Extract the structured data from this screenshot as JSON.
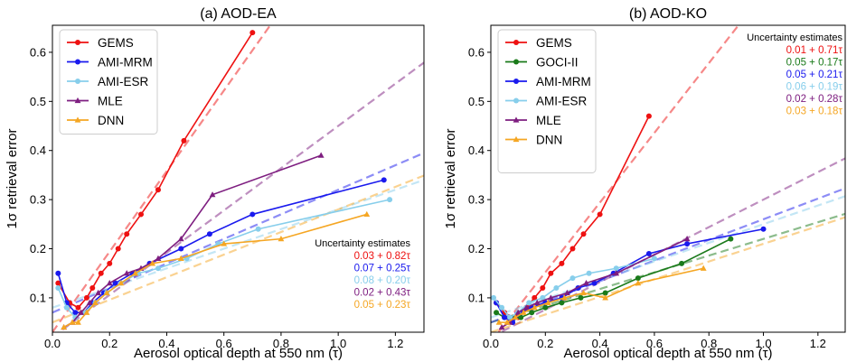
{
  "chart_data": [
    {
      "type": "line",
      "title": "(a) AOD-EA",
      "xlabel": "Aerosol optical depth at 550 nm (τ)",
      "ylabel": "1σ retrieval error",
      "xlim": [
        0,
        1.3
      ],
      "ylim": [
        0.03,
        0.655
      ],
      "xticks": [
        "0.0",
        "0.2",
        "0.4",
        "0.6",
        "0.8",
        "1.0",
        "1.2"
      ],
      "yticks": [
        "0.1",
        "0.2",
        "0.3",
        "0.4",
        "0.5",
        "0.6"
      ],
      "legend_position": "top-left",
      "uncertainty_title": "Uncertainty estimates",
      "series": [
        {
          "name": "GEMS",
          "color": "#ee1111",
          "marker": "circle",
          "x": [
            0.02,
            0.06,
            0.09,
            0.12,
            0.14,
            0.17,
            0.2,
            0.23,
            0.26,
            0.31,
            0.37,
            0.46,
            0.7
          ],
          "y": [
            0.13,
            0.09,
            0.08,
            0.1,
            0.12,
            0.15,
            0.17,
            0.2,
            0.23,
            0.27,
            0.32,
            0.42,
            0.64
          ],
          "fit": [
            0.03,
            0.82
          ],
          "fit_label": "0.03 + 0.82τ"
        },
        {
          "name": "AMI-MRM",
          "color": "#1a1aee",
          "marker": "circle",
          "x": [
            0.02,
            0.05,
            0.08,
            0.11,
            0.14,
            0.18,
            0.22,
            0.28,
            0.34,
            0.45,
            0.55,
            0.7,
            1.16
          ],
          "y": [
            0.15,
            0.09,
            0.07,
            0.07,
            0.09,
            0.11,
            0.13,
            0.15,
            0.17,
            0.2,
            0.23,
            0.27,
            0.34
          ],
          "fit": [
            0.07,
            0.25
          ],
          "fit_label": "0.07 + 0.25τ"
        },
        {
          "name": "AMI-ESR",
          "color": "#87ceeb",
          "marker": "circle",
          "x": [
            0.02,
            0.05,
            0.08,
            0.11,
            0.15,
            0.19,
            0.24,
            0.3,
            0.37,
            0.47,
            0.58,
            0.72,
            1.18
          ],
          "y": [
            0.12,
            0.08,
            0.06,
            0.07,
            0.09,
            0.11,
            0.13,
            0.15,
            0.16,
            0.18,
            0.21,
            0.24,
            0.3
          ],
          "fit": [
            0.08,
            0.2
          ],
          "fit_label": "0.08 + 0.20τ"
        },
        {
          "name": "MLE",
          "color": "#7e1e80",
          "marker": "triangle",
          "x": [
            0.04,
            0.07,
            0.1,
            0.13,
            0.16,
            0.2,
            0.26,
            0.31,
            0.37,
            0.45,
            0.56,
            0.94
          ],
          "y": [
            0.04,
            0.05,
            0.07,
            0.09,
            0.11,
            0.13,
            0.15,
            0.16,
            0.18,
            0.22,
            0.31,
            0.39
          ],
          "fit": [
            0.02,
            0.43
          ],
          "fit_label": "0.02 + 0.43τ"
        },
        {
          "name": "DNN",
          "color": "#f5a623",
          "marker": "triangle",
          "x": [
            0.04,
            0.07,
            0.09,
            0.12,
            0.15,
            0.19,
            0.24,
            0.29,
            0.35,
            0.45,
            0.6,
            0.8,
            1.1
          ],
          "y": [
            0.04,
            0.05,
            0.05,
            0.07,
            0.09,
            0.11,
            0.13,
            0.15,
            0.17,
            0.18,
            0.21,
            0.22,
            0.27
          ],
          "fit": [
            0.05,
            0.23
          ],
          "fit_label": "0.05 + 0.23τ"
        }
      ]
    },
    {
      "type": "line",
      "title": "(b) AOD-KO",
      "xlabel": "Aerosol optical depth at 550 nm (τ)",
      "ylabel": "1σ retrieval error",
      "xlim": [
        0,
        1.3
      ],
      "ylim": [
        0.03,
        0.655
      ],
      "xticks": [
        "0.0",
        "0.2",
        "0.4",
        "0.6",
        "0.8",
        "1.0",
        "1.2"
      ],
      "yticks": [
        "0.1",
        "0.2",
        "0.3",
        "0.4",
        "0.5",
        "0.6"
      ],
      "legend_position": "top-left",
      "uncertainty_title": "Uncertainty estimates",
      "series": [
        {
          "name": "GEMS",
          "color": "#ee1111",
          "marker": "circle",
          "x": [
            0.02,
            0.05,
            0.08,
            0.1,
            0.13,
            0.16,
            0.19,
            0.22,
            0.26,
            0.3,
            0.34,
            0.4,
            0.58
          ],
          "y": [
            0.09,
            0.07,
            0.06,
            0.06,
            0.08,
            0.1,
            0.12,
            0.15,
            0.17,
            0.2,
            0.23,
            0.27,
            0.47
          ],
          "fit": [
            0.01,
            0.71
          ],
          "fit_label": "0.01 + 0.71τ"
        },
        {
          "name": "GOCI-II",
          "color": "#1a7a1a",
          "marker": "circle",
          "x": [
            0.02,
            0.05,
            0.08,
            0.11,
            0.15,
            0.2,
            0.26,
            0.33,
            0.42,
            0.54,
            0.7,
            0.88
          ],
          "y": [
            0.07,
            0.06,
            0.06,
            0.06,
            0.07,
            0.08,
            0.09,
            0.1,
            0.11,
            0.14,
            0.17,
            0.22
          ],
          "fit": [
            0.05,
            0.17
          ],
          "fit_label": "0.05 + 0.17τ"
        },
        {
          "name": "AMI-MRM",
          "color": "#1a1aee",
          "marker": "circle",
          "x": [
            0.02,
            0.05,
            0.08,
            0.11,
            0.15,
            0.2,
            0.26,
            0.32,
            0.38,
            0.45,
            0.58,
            0.72,
            1.0
          ],
          "y": [
            0.09,
            0.06,
            0.05,
            0.07,
            0.08,
            0.09,
            0.1,
            0.12,
            0.13,
            0.15,
            0.19,
            0.21,
            0.24
          ],
          "fit": [
            0.05,
            0.21
          ],
          "fit_label": "0.05 + 0.21τ"
        },
        {
          "name": "AMI-ESR",
          "color": "#87ceeb",
          "marker": "circle",
          "x": [
            0.01,
            0.04,
            0.07,
            0.1,
            0.14,
            0.19,
            0.24,
            0.3,
            0.36,
            0.46,
            0.6
          ],
          "y": [
            0.1,
            0.08,
            0.06,
            0.07,
            0.09,
            0.1,
            0.12,
            0.14,
            0.15,
            0.16,
            0.18
          ],
          "fit": [
            0.06,
            0.19
          ],
          "fit_label": "0.06 + 0.19τ"
        },
        {
          "name": "MLE",
          "color": "#7e1e80",
          "marker": "triangle",
          "x": [
            0.04,
            0.07,
            0.1,
            0.13,
            0.17,
            0.22,
            0.28,
            0.35,
            0.46,
            0.72
          ],
          "y": [
            0.04,
            0.05,
            0.07,
            0.08,
            0.09,
            0.1,
            0.11,
            0.13,
            0.15,
            0.22
          ],
          "fit": [
            0.02,
            0.28
          ],
          "fit_label": "0.02 + 0.28τ"
        },
        {
          "name": "DNN",
          "color": "#f5a623",
          "marker": "triangle",
          "x": [
            0.03,
            0.06,
            0.09,
            0.12,
            0.16,
            0.21,
            0.27,
            0.34,
            0.42,
            0.54,
            0.78
          ],
          "y": [
            0.05,
            0.05,
            0.06,
            0.07,
            0.08,
            0.09,
            0.1,
            0.11,
            0.1,
            0.13,
            0.16
          ],
          "fit": [
            0.03,
            0.18
          ],
          "fit_label": "0.03 + 0.18τ"
        }
      ]
    }
  ]
}
